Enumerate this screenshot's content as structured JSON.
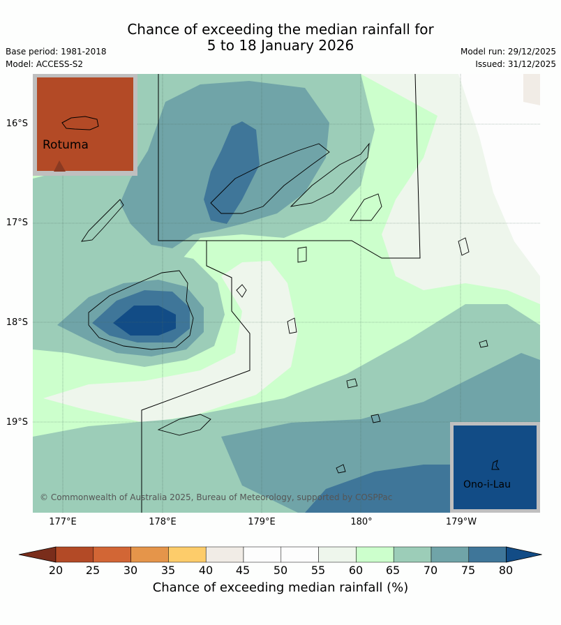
{
  "title": {
    "line1": "Chance of exceeding the median rainfall for",
    "line2": "5 to 18 January 2026"
  },
  "meta": {
    "base_period": "Base period: 1981-2018",
    "model": "Model: ACCESS-S2",
    "model_run": "Model run: 29/12/2025",
    "issued": "Issued: 31/12/2025"
  },
  "map": {
    "lat_labels": [
      "16°S",
      "17°S",
      "18°S",
      "19°S"
    ],
    "lon_labels": [
      "177°E",
      "178°E",
      "179°E",
      "180°",
      "179°W"
    ],
    "insets": [
      {
        "name": "Rotuma",
        "probability_band": "20-25",
        "color": "#b34a26"
      },
      {
        "name": "Ono-i-Lau",
        "probability_band": "80+",
        "color": "#124c86"
      }
    ],
    "copyright": "© Commonwealth of Australia 2025, Bureau of Meteorology, supported by COSPPac"
  },
  "colorbar": {
    "ticks": [
      "20",
      "25",
      "30",
      "35",
      "40",
      "45",
      "50",
      "55",
      "60",
      "65",
      "70",
      "75",
      "80"
    ],
    "colors": [
      "#7a2d1b",
      "#b34a26",
      "#d26635",
      "#e5954a",
      "#fdcc6a",
      "#f1ece6",
      "#fdfdfd",
      "#fdfdfd",
      "#eef6ec",
      "#ccffcc",
      "#9ccdb8",
      "#70a4a8",
      "#3f7699",
      "#124c86"
    ],
    "label": "Chance of exceeding median rainfall (%)"
  }
}
